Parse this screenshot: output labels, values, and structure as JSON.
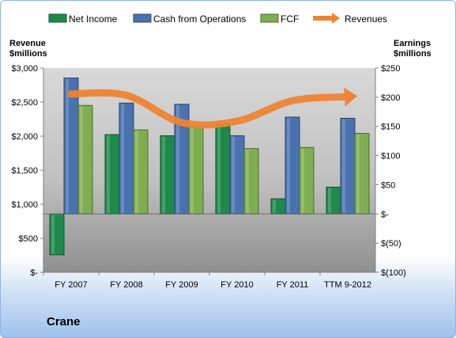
{
  "company": "Crane",
  "chart_data": {
    "type": "bar",
    "categories": [
      "FY 2007",
      "FY 2008",
      "FY 2009",
      "FY 2010",
      "FY 2011",
      "TTM 9-2012"
    ],
    "left_axis": {
      "title_line1": "Revenue",
      "title_line2": "$millions",
      "ylim": [
        0,
        3000
      ],
      "ticks": [
        0,
        500,
        1000,
        1500,
        2000,
        2500,
        3000
      ],
      "tick_labels": [
        "$-",
        "$500",
        "$1,000",
        "$1,500",
        "$2,000",
        "$2,500",
        "$3,000"
      ]
    },
    "right_axis": {
      "title_line1": "Earnings",
      "title_line2": "$millions",
      "ylim": [
        -100,
        250
      ],
      "ticks": [
        -100,
        -50,
        0,
        50,
        100,
        150,
        200,
        250
      ],
      "tick_labels": [
        "$(100)",
        "$(50)",
        "$-",
        "$50",
        "$100",
        "$150",
        "$200",
        "$250"
      ]
    },
    "series": [
      {
        "name": "Net Income",
        "axis": "right",
        "kind": "bar",
        "color": "#1e8a4a",
        "values": [
          -70,
          136,
          134,
          154,
          26,
          46
        ]
      },
      {
        "name": "Cash from Operations",
        "axis": "right",
        "kind": "bar",
        "color": "#4a72b0",
        "values": [
          233,
          190,
          188,
          134,
          166,
          164
        ]
      },
      {
        "name": "FCF",
        "axis": "right",
        "kind": "bar",
        "color": "#7fae50",
        "values": [
          186,
          144,
          150,
          112,
          114,
          138
        ]
      },
      {
        "name": "Revenues",
        "axis": "left",
        "kind": "line-arrow",
        "color": "#ee8433",
        "values": [
          2620,
          2600,
          2200,
          2220,
          2520,
          2580
        ]
      }
    ],
    "legend_position": "top",
    "grid": false
  }
}
